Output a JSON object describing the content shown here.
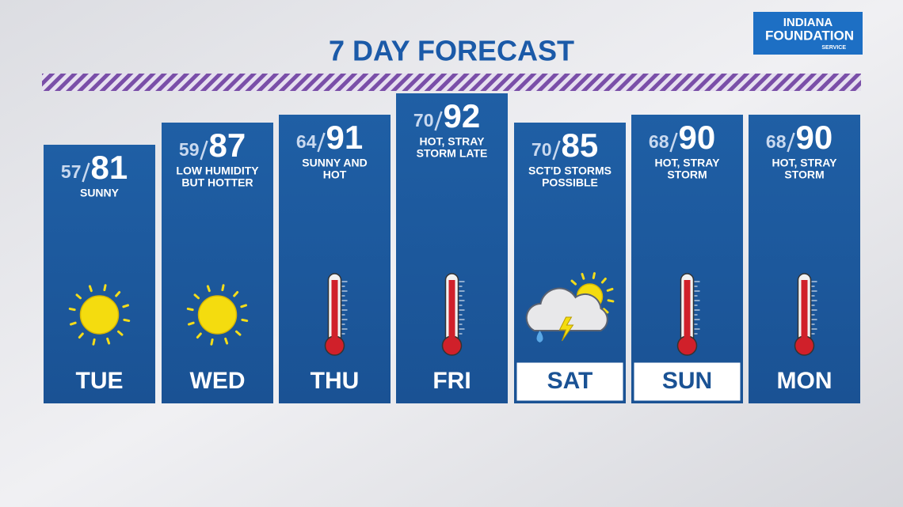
{
  "title": "7 DAY FORECAST",
  "logo": {
    "line1": "INDIANA",
    "line2": "FOUNDATION",
    "line3": "SERVICE"
  },
  "days": [
    {
      "day": "TUE",
      "low": 57,
      "high": 81,
      "description": [
        "SUNNY"
      ],
      "icon": "sun",
      "highlight": false
    },
    {
      "day": "WED",
      "low": 59,
      "high": 87,
      "description": [
        "LOW HUMIDITY",
        "BUT HOTTER"
      ],
      "icon": "sun",
      "highlight": false
    },
    {
      "day": "THU",
      "low": 64,
      "high": 91,
      "description": [
        "SUNNY AND",
        "HOT"
      ],
      "icon": "thermometer",
      "highlight": false
    },
    {
      "day": "FRI",
      "low": 70,
      "high": 92,
      "description": [
        "HOT, STRAY",
        "STORM LATE"
      ],
      "icon": "thermometer",
      "highlight": false
    },
    {
      "day": "SAT",
      "low": 70,
      "high": 85,
      "description": [
        "SCT'D STORMS",
        "POSSIBLE"
      ],
      "icon": "storm",
      "highlight": true
    },
    {
      "day": "SUN",
      "low": 68,
      "high": 90,
      "description": [
        "HOT, STRAY",
        "STORM"
      ],
      "icon": "thermometer",
      "highlight": true
    },
    {
      "day": "MON",
      "low": 68,
      "high": 90,
      "description": [
        "HOT, STRAY",
        "STORM"
      ],
      "icon": "thermometer",
      "highlight": false
    }
  ]
}
